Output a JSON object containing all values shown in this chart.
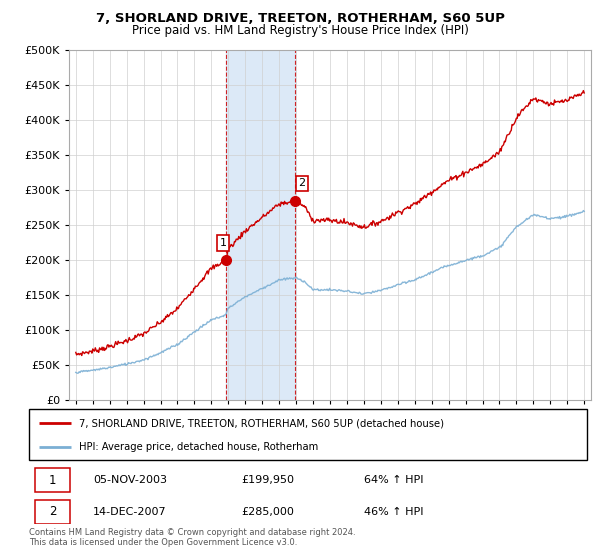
{
  "title": "7, SHORLAND DRIVE, TREETON, ROTHERHAM, S60 5UP",
  "subtitle": "Price paid vs. HM Land Registry's House Price Index (HPI)",
  "legend_line1": "7, SHORLAND DRIVE, TREETON, ROTHERHAM, S60 5UP (detached house)",
  "legend_line2": "HPI: Average price, detached house, Rotherham",
  "transaction1_date": "05-NOV-2003",
  "transaction1_price": "£199,950",
  "transaction1_hpi": "64% ↑ HPI",
  "transaction2_date": "14-DEC-2007",
  "transaction2_price": "£285,000",
  "transaction2_hpi": "46% ↑ HPI",
  "footnote": "Contains HM Land Registry data © Crown copyright and database right 2024.\nThis data is licensed under the Open Government Licence v3.0.",
  "red_color": "#cc0000",
  "blue_color": "#7bafd4",
  "highlight_color": "#dce9f7",
  "ylim": [
    0,
    500000
  ],
  "yticks": [
    0,
    50000,
    100000,
    150000,
    200000,
    250000,
    300000,
    350000,
    400000,
    450000,
    500000
  ],
  "transaction1_x": 2003.84,
  "transaction1_y": 199950,
  "transaction2_x": 2007.95,
  "transaction2_y": 285000,
  "xlim_left": 1994.6,
  "xlim_right": 2025.4
}
